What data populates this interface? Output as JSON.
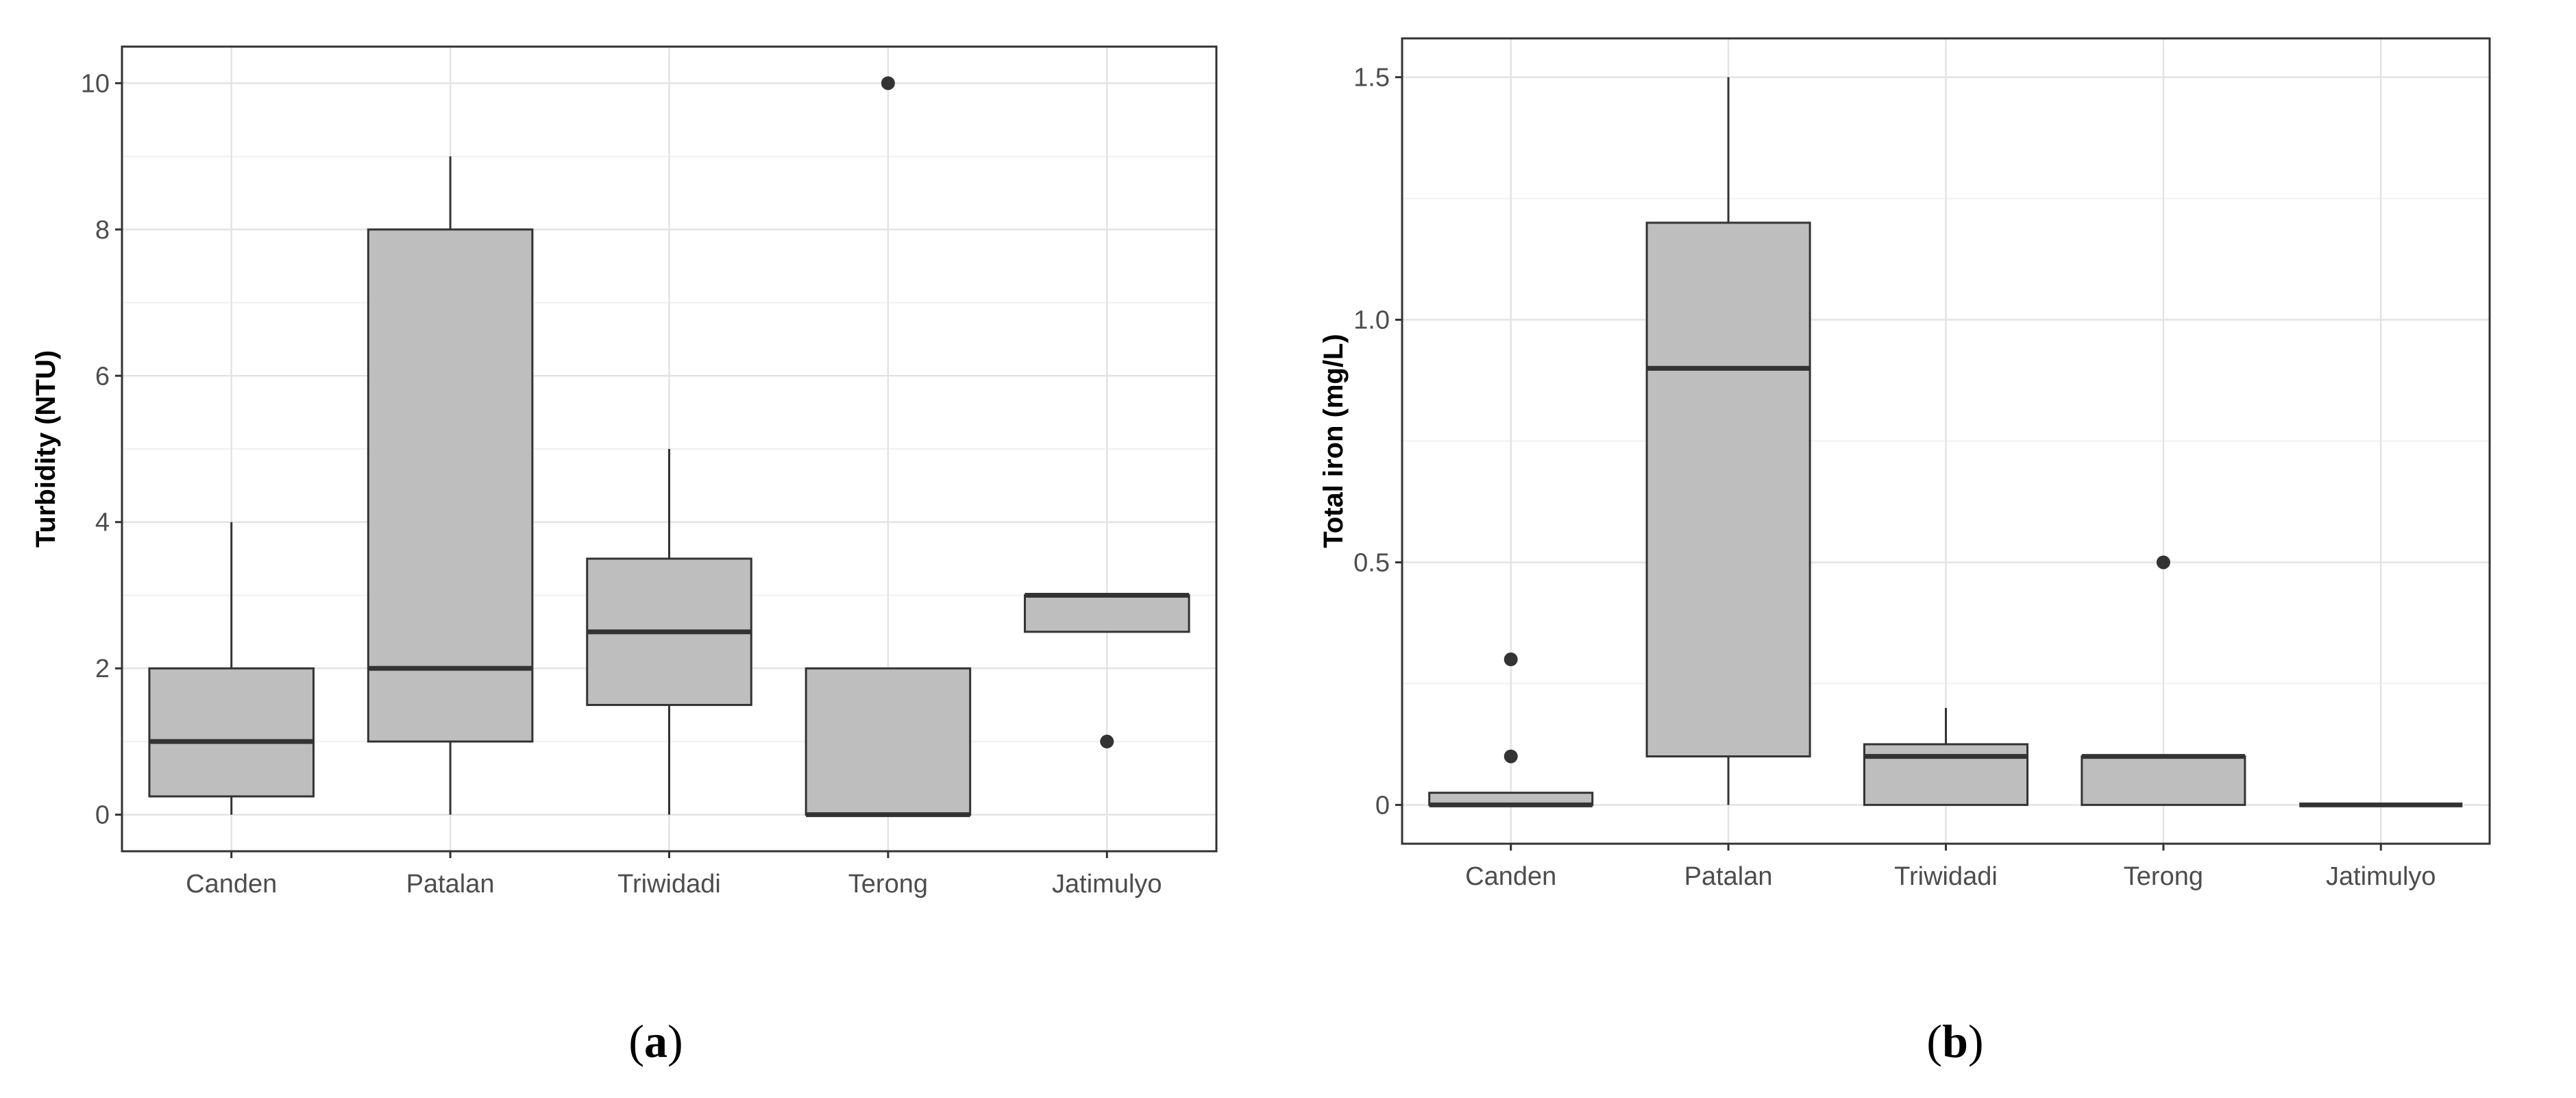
{
  "chart_data": [
    {
      "type": "box",
      "panel_label": "a",
      "ylabel": "Turbidity  (NTU)",
      "ylim": [
        -0.5,
        10.5
      ],
      "yticks": [
        0,
        2,
        4,
        6,
        8,
        10
      ],
      "grid": true,
      "fill_color": "#bebebe",
      "categories": [
        "Canden",
        "Patalan",
        "Triwidadi",
        "Terong",
        "Jatimulyo"
      ],
      "boxes": [
        {
          "category": "Canden",
          "min": 0,
          "q1": 0.25,
          "median": 1,
          "q3": 2,
          "max": 4,
          "outliers": []
        },
        {
          "category": "Patalan",
          "min": 0,
          "q1": 1,
          "median": 2,
          "q3": 8,
          "max": 9,
          "outliers": []
        },
        {
          "category": "Triwidadi",
          "min": 0,
          "q1": 1.5,
          "median": 2.5,
          "q3": 3.5,
          "max": 5,
          "outliers": []
        },
        {
          "category": "Terong",
          "min": 0,
          "q1": 0,
          "median": 0,
          "q3": 2,
          "max": 2,
          "outliers": [
            10
          ]
        },
        {
          "category": "Jatimulyo",
          "min": 2.5,
          "q1": 2.5,
          "median": 3,
          "q3": 3,
          "max": 3,
          "outliers": [
            1
          ]
        }
      ]
    },
    {
      "type": "box",
      "panel_label": "b",
      "ylabel": "Total iron (mg/L)",
      "ylim": [
        -0.08,
        1.58
      ],
      "yticks": [
        0,
        0.5,
        1.0,
        1.5
      ],
      "ytick_labels": [
        "0",
        "0.5",
        "1.0",
        "1.5"
      ],
      "grid": true,
      "fill_color": "#bebebe",
      "categories": [
        "Canden",
        "Patalan",
        "Triwidadi",
        "Terong",
        "Jatimulyo"
      ],
      "boxes": [
        {
          "category": "Canden",
          "min": 0,
          "q1": 0,
          "median": 0,
          "q3": 0.025,
          "max": 0.025,
          "outliers": [
            0.1,
            0.3
          ]
        },
        {
          "category": "Patalan",
          "min": 0,
          "q1": 0.1,
          "median": 0.9,
          "q3": 1.2,
          "max": 1.5,
          "outliers": []
        },
        {
          "category": "Triwidadi",
          "min": 0,
          "q1": 0,
          "median": 0.1,
          "q3": 0.125,
          "max": 0.2,
          "outliers": []
        },
        {
          "category": "Terong",
          "min": 0,
          "q1": 0,
          "median": 0.1,
          "q3": 0.1,
          "max": 0.1,
          "outliers": [
            0.5
          ]
        },
        {
          "category": "Jatimulyo",
          "min": 0,
          "q1": 0,
          "median": 0,
          "q3": 0,
          "max": 0,
          "outliers": []
        }
      ]
    }
  ]
}
